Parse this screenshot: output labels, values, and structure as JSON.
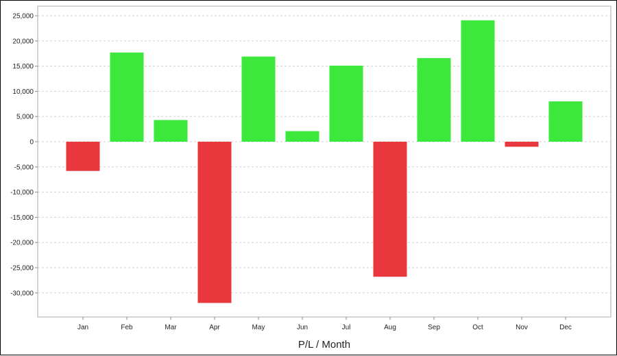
{
  "chart_data": {
    "type": "bar",
    "title": "",
    "xlabel": "P/L / Month",
    "ylabel": "",
    "categories": [
      "Jan",
      "Feb",
      "Mar",
      "Apr",
      "May",
      "Jun",
      "Jul",
      "Aug",
      "Sep",
      "Oct",
      "Nov",
      "Dec"
    ],
    "values": [
      -5800,
      17700,
      4300,
      -32000,
      16900,
      2100,
      15100,
      -26800,
      16600,
      24100,
      -1000,
      8000
    ],
    "ylim": [
      -35000,
      26000
    ],
    "yticks": [
      25000,
      20000,
      15000,
      10000,
      5000,
      0,
      -5000,
      -10000,
      -15000,
      -20000,
      -25000,
      -30000
    ],
    "ytick_labels": [
      "25,000",
      "20,000",
      "15,000",
      "10,000",
      "5,000",
      "0",
      "-5,000",
      "-10,000",
      "-15,000",
      "-20,000",
      "-25,000",
      "-30,000"
    ],
    "grid": true,
    "legend": "none",
    "colors": {
      "positive": "#3de83d",
      "negative": "#e8383d",
      "grid": "#cfcfcf",
      "axis": "#888888"
    }
  }
}
